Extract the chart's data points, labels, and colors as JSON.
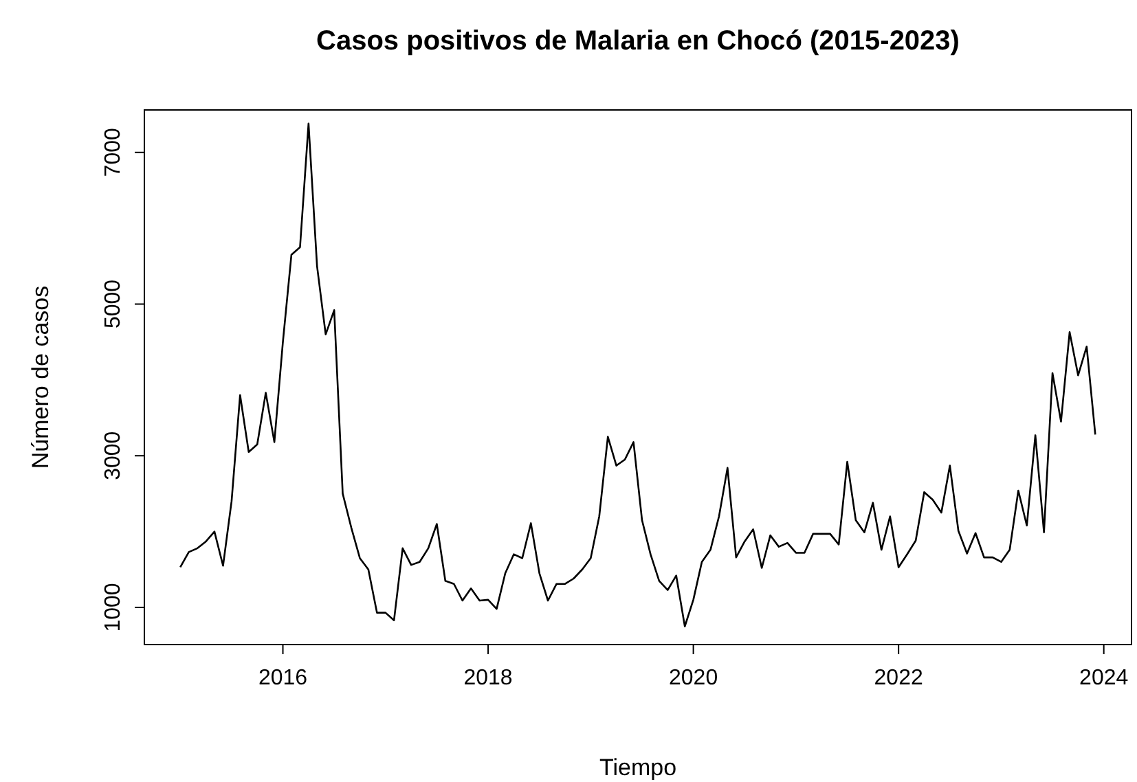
{
  "chart_data": {
    "type": "line",
    "title": "Casos positivos de Malaria en Chocó (2015-2023)",
    "xlabel": "Tiempo",
    "ylabel": "Número de casos",
    "x": [
      2015,
      2015.083,
      2015.167,
      2015.25,
      2015.333,
      2015.417,
      2015.5,
      2015.583,
      2015.667,
      2015.75,
      2015.833,
      2015.917,
      2016,
      2016.083,
      2016.167,
      2016.25,
      2016.333,
      2016.417,
      2016.5,
      2016.583,
      2016.667,
      2016.75,
      2016.833,
      2016.917,
      2017,
      2017.083,
      2017.167,
      2017.25,
      2017.333,
      2017.417,
      2017.5,
      2017.583,
      2017.667,
      2017.75,
      2017.833,
      2017.917,
      2018,
      2018.083,
      2018.167,
      2018.25,
      2018.333,
      2018.417,
      2018.5,
      2018.583,
      2018.667,
      2018.75,
      2018.833,
      2018.917,
      2019,
      2019.083,
      2019.167,
      2019.25,
      2019.333,
      2019.417,
      2019.5,
      2019.583,
      2019.667,
      2019.75,
      2019.833,
      2019.917,
      2020,
      2020.083,
      2020.167,
      2020.25,
      2020.333,
      2020.417,
      2020.5,
      2020.583,
      2020.667,
      2020.75,
      2020.833,
      2020.917,
      2021,
      2021.083,
      2021.167,
      2021.25,
      2021.333,
      2021.417,
      2021.5,
      2021.583,
      2021.667,
      2021.75,
      2021.833,
      2021.917,
      2022,
      2022.083,
      2022.167,
      2022.25,
      2022.333,
      2022.417,
      2022.5,
      2022.583,
      2022.667,
      2022.75,
      2022.833,
      2022.917,
      2023,
      2023.083,
      2023.167,
      2023.25,
      2023.333,
      2023.417,
      2023.5,
      2023.583,
      2023.667,
      2023.75,
      2023.833,
      2023.917
    ],
    "series": [
      {
        "color": "#000000",
        "values": [
          1530,
          1730,
          1780,
          1870,
          2000,
          1550,
          2400,
          3800,
          3050,
          3150,
          3830,
          3180,
          4500,
          5650,
          5750,
          7380,
          5500,
          4600,
          4920,
          2500,
          2050,
          1650,
          1500,
          930,
          930,
          830,
          1780,
          1560,
          1600,
          1780,
          2100,
          1350,
          1310,
          1090,
          1250,
          1090,
          1100,
          980,
          1450,
          1700,
          1650,
          2110,
          1450,
          1090,
          1310,
          1310,
          1380,
          1500,
          1650,
          2200,
          3250,
          2870,
          2950,
          3180,
          2150,
          1700,
          1350,
          1230,
          1420,
          750,
          1100,
          1600,
          1760,
          2200,
          2840,
          1660,
          1870,
          2030,
          1520,
          1950,
          1800,
          1850,
          1720,
          1720,
          1970,
          1970,
          1970,
          1830,
          2920,
          2150,
          1990,
          2380,
          1760,
          2200,
          1530,
          1700,
          1880,
          2520,
          2420,
          2250,
          2870,
          2010,
          1710,
          1980,
          1660,
          1660,
          1600,
          1760,
          2540,
          2080,
          3270,
          1990,
          4090,
          3450,
          4630,
          4060,
          4440,
          3280
        ]
      }
    ],
    "xlim": [
      2014.65,
      2024.27
    ],
    "xticks": [
      2016,
      2018,
      2020,
      2022,
      2024
    ],
    "ylim": [
      510,
      7560
    ],
    "yticks": [
      1000,
      3000,
      5000,
      7000
    ],
    "grid": false,
    "marker": "none",
    "line_style": "solid"
  }
}
